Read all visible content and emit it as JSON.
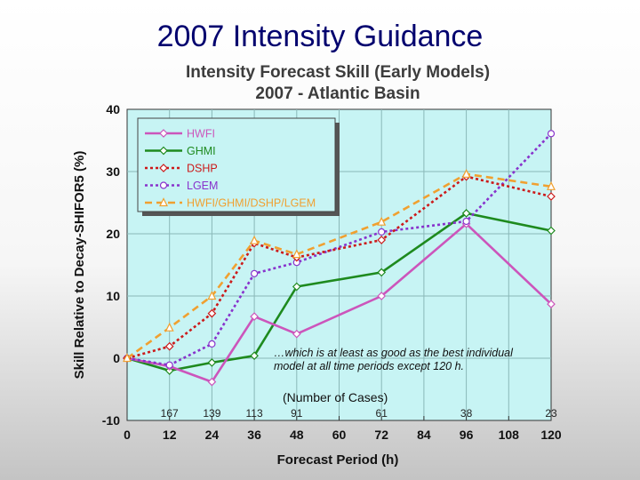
{
  "slide": {
    "title": "2007 Intensity Guidance"
  },
  "chart_data": {
    "type": "line",
    "title": "Intensity Forecast Skill (Early Models)",
    "subtitle": "2007 - Atlantic Basin",
    "xlabel": "Forecast Period (h)",
    "ylabel": "Skill Relative to Decay-SHIFOR5 (%)",
    "xlim": [
      0,
      120
    ],
    "ylim": [
      -10,
      40
    ],
    "xticks": [
      "0",
      "12",
      "24",
      "36",
      "48",
      "60",
      "72",
      "84",
      "96",
      "108",
      "120"
    ],
    "yticks": [
      "-10",
      "0",
      "10",
      "20",
      "30",
      "40"
    ],
    "x": [
      0,
      12,
      24,
      36,
      48,
      72,
      96,
      120
    ],
    "series": [
      {
        "name": "HWFI",
        "color": "#cc55bb",
        "dash": "solid",
        "marker": "diamond",
        "values": [
          0,
          -1.3,
          -3.8,
          6.7,
          3.9,
          10.0,
          21.6,
          8.7
        ]
      },
      {
        "name": "GHMI",
        "color": "#1e8a1e",
        "dash": "solid",
        "marker": "diamond",
        "values": [
          0,
          -2.0,
          -0.7,
          0.4,
          11.5,
          13.8,
          23.3,
          20.5
        ]
      },
      {
        "name": "DSHP",
        "color": "#cc1a1a",
        "dash": "dot",
        "marker": "diamond",
        "values": [
          0,
          1.9,
          7.2,
          18.5,
          16.2,
          19.0,
          29.2,
          26.0
        ]
      },
      {
        "name": "LGEM",
        "color": "#8833cc",
        "dash": "dot",
        "marker": "circle",
        "values": [
          0,
          -1.1,
          2.3,
          13.6,
          15.4,
          20.3,
          22.0,
          36.1
        ]
      },
      {
        "name": "HWFI/GHMI/DSHP/LGEM",
        "color": "#f0a030",
        "dash": "dash",
        "marker": "triangle",
        "values": [
          0,
          4.9,
          10.0,
          18.9,
          16.7,
          21.9,
          29.6,
          27.6
        ]
      }
    ],
    "cases_label": "(Number of Cases)",
    "case_counts": [
      {
        "x": 12,
        "count": "167"
      },
      {
        "x": 24,
        "count": "139"
      },
      {
        "x": 36,
        "count": "113"
      },
      {
        "x": 48,
        "count": "91"
      },
      {
        "x": 72,
        "count": "61"
      },
      {
        "x": 96,
        "count": "38"
      },
      {
        "x": 120,
        "count": "23"
      }
    ],
    "annotation": {
      "line1": "…which is at least as good as the best individual",
      "line2": "model at all time periods except 120 h."
    },
    "legend_position": "top-left"
  }
}
